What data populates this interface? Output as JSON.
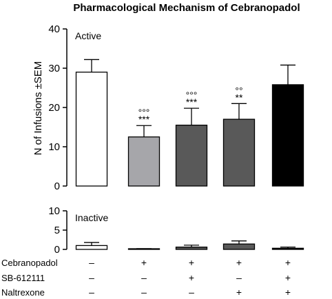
{
  "chart_data": {
    "type": "bar",
    "title": "Pharmacological Mechanism of Cebranopadol",
    "ylabel": "N of Infusions ±SEM",
    "groups": [
      {
        "cebranopadol": "–",
        "sb612111": "–",
        "naltrexone": "–",
        "color": "#ffffff"
      },
      {
        "cebranopadol": "+",
        "sb612111": "–",
        "naltrexone": "–",
        "color": "#a6a6aa"
      },
      {
        "cebranopadol": "+",
        "sb612111": "+",
        "naltrexone": "–",
        "color": "#595959"
      },
      {
        "cebranopadol": "+",
        "sb612111": "–",
        "naltrexone": "+",
        "color": "#595959"
      },
      {
        "cebranopadol": "+",
        "sb612111": "+",
        "naltrexone": "+",
        "color": "#000000"
      }
    ],
    "row_labels": [
      "Cebranopadol",
      "SB-612111",
      "Naltrexone"
    ],
    "panels": [
      {
        "label": "Active",
        "ylim": [
          0,
          40
        ],
        "yticks": [
          "0",
          "10",
          "20",
          "30",
          "40"
        ],
        "values": [
          29,
          12.5,
          15.5,
          17,
          25.8
        ],
        "sem": [
          3.2,
          2.9,
          4.3,
          4.0,
          5.0
        ],
        "sig_circles": [
          "",
          "°°°",
          "°°°",
          "°°",
          ""
        ],
        "sig_stars": [
          "",
          "***",
          "***",
          "**",
          ""
        ]
      },
      {
        "label": "Inactive",
        "ylim": [
          0,
          10
        ],
        "yticks": [
          "0",
          "5",
          "10"
        ],
        "values": [
          1.0,
          0.1,
          0.6,
          1.4,
          0.3
        ],
        "sem": [
          0.8,
          0.1,
          0.5,
          0.8,
          0.3
        ]
      }
    ]
  }
}
